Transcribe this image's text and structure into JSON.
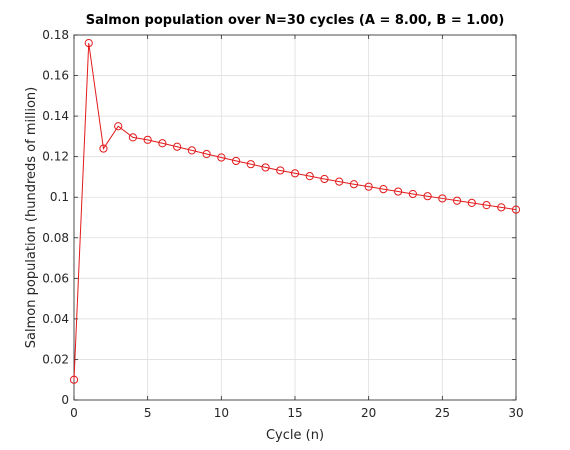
{
  "chart_data": {
    "type": "line",
    "title": "Salmon population over N=30 cycles (A = 8.00, B = 1.00)",
    "xlabel": "Cycle (n)",
    "ylabel": "Salmon population (hundreds of million)",
    "xlim": [
      0,
      30
    ],
    "ylim": [
      0,
      0.18
    ],
    "xticks": [
      0,
      5,
      10,
      15,
      20,
      25,
      30
    ],
    "yticks": [
      0,
      0.02,
      0.04,
      0.06,
      0.08,
      0.1,
      0.12,
      0.14,
      0.16,
      0.18
    ],
    "xtick_labels": [
      "0",
      "5",
      "10",
      "15",
      "20",
      "25",
      "30"
    ],
    "ytick_labels": [
      "0",
      "0.02",
      "0.04",
      "0.06",
      "0.08",
      "0.1",
      "0.12",
      "0.14",
      "0.16",
      "0.18"
    ],
    "grid": true,
    "legend": false,
    "series": [
      {
        "color": "#e31a1c",
        "marker": "circle",
        "x": [
          0,
          1,
          2,
          3,
          4,
          5,
          6,
          7,
          8,
          9,
          10,
          11,
          12,
          13,
          14,
          15,
          16,
          17,
          18,
          19,
          20,
          21,
          22,
          23,
          24,
          25,
          26,
          27,
          28,
          29,
          30
        ],
        "values": [
          0.01,
          0.176,
          0.124,
          0.135,
          0.1295,
          0.1283,
          0.1266,
          0.1249,
          0.1231,
          0.1213,
          0.1196,
          0.1179,
          0.1163,
          0.1147,
          0.1132,
          0.1118,
          0.1104,
          0.109,
          0.1077,
          0.1064,
          0.1052,
          0.104,
          0.1028,
          0.1016,
          0.1005,
          0.0994,
          0.0983,
          0.0972,
          0.0961,
          0.095,
          0.0939
        ]
      }
    ]
  }
}
